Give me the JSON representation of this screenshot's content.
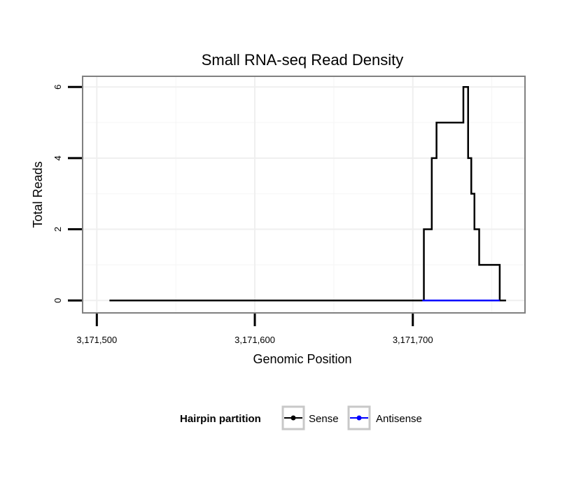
{
  "chart_data": {
    "type": "line",
    "title": "Small RNA-seq Read Density",
    "xlabel": "Genomic Position",
    "ylabel": "Total Reads",
    "xlim": [
      3171491,
      3171771
    ],
    "ylim": [
      -0.35,
      6.3
    ],
    "x_ticks": [
      3171500,
      3171600,
      3171700
    ],
    "x_tick_labels": [
      "3,171,500",
      "3,171,600",
      "3,171,700"
    ],
    "y_ticks": [
      0,
      2,
      4,
      6
    ],
    "y_tick_labels": [
      "0",
      "2",
      "4",
      "6"
    ],
    "x_minor_ticks": [
      3171550,
      3171650,
      3171750
    ],
    "y_minor_ticks": [
      1,
      3,
      5
    ],
    "grid": true,
    "legend": {
      "title": "Hairpin partition",
      "position": "bottom",
      "entries": [
        "Sense",
        "Antisense"
      ]
    },
    "series": [
      {
        "name": "Sense",
        "color": "#000000",
        "step": true,
        "x": [
          3171508,
          3171706,
          3171707,
          3171712,
          3171715,
          3171719,
          3171723,
          3171732,
          3171734,
          3171735,
          3171737,
          3171739,
          3171740,
          3171742,
          3171755,
          3171756,
          3171759
        ],
        "y": [
          0,
          0,
          2,
          4,
          5,
          5,
          5,
          6,
          6,
          4,
          3,
          2,
          2,
          1,
          0,
          0,
          0
        ]
      },
      {
        "name": "Antisense",
        "color": "#0000ff",
        "step": true,
        "x": [
          3171706,
          3171755
        ],
        "y": [
          0,
          0
        ]
      }
    ]
  }
}
